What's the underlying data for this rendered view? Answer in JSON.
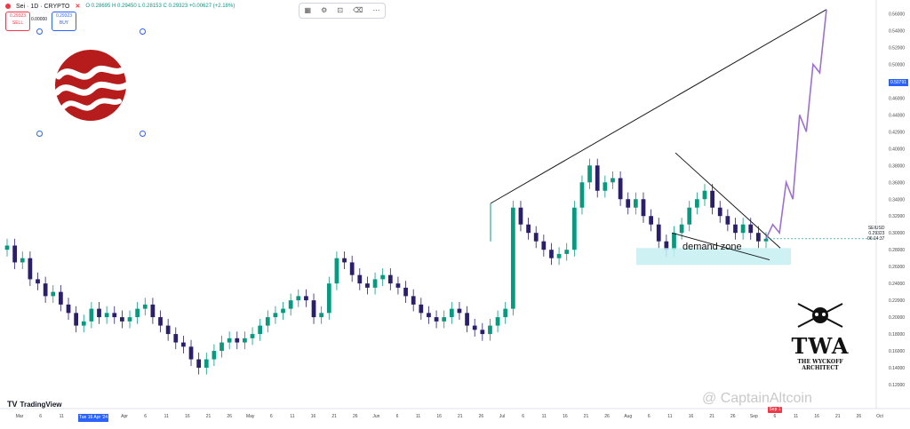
{
  "header": {
    "symbol_line": "Sei · 1D · CRYPTO",
    "ohlc": "O 0.28695  H 0.29450  L 0.28153  C 0.29323  +0.00627 (+2.18%)",
    "sell_price": "0.29323",
    "sell_label": "SELL",
    "buy_price": "0.29323",
    "buy_label": "BUY",
    "spread": "0.00000"
  },
  "toolbar": {
    "icons": [
      "template-icon",
      "settings-icon",
      "lock-icon",
      "trash-icon",
      "more-icon"
    ],
    "glyphs": [
      "▦",
      "⚙",
      "🔒",
      "🗑",
      "⋯"
    ]
  },
  "right_axis": {
    "current_price_badge": "0.50791",
    "symbol_label": "SEIUSD",
    "last_price": "0.29323",
    "countdown": "06:14:37"
  },
  "branding": {
    "tradingview": "TradingView",
    "twa_big": "TWA",
    "twa_line1": "THE WYCKOFF",
    "twa_line2": "ARCHITECT",
    "watermark": "@ CaptainAltcoin"
  },
  "annotations": {
    "demand_zone": "demand zone",
    "red_badge": "Sep 1"
  },
  "date_badge": "Tue 16 Apr '24",
  "colors": {
    "up": "#089981",
    "down": "#2a1f6b",
    "zone": "#c6eef2",
    "projection": "#9b6fd3",
    "trendline": "#1a1a1a",
    "logo_red": "#b71c1c"
  },
  "chart_data": {
    "type": "candlestick",
    "title": "Sei · 1D · CRYPTO",
    "xlabel": "",
    "ylabel": "",
    "ylim": [
      0.1,
      0.57
    ],
    "y_ticks": [
      0.12,
      0.14,
      0.16,
      0.18,
      0.2,
      0.22,
      0.24,
      0.26,
      0.28,
      0.3,
      0.32,
      0.34,
      0.36,
      0.38,
      0.4,
      0.42,
      0.44,
      0.46,
      0.48,
      0.5,
      0.52,
      0.54,
      0.56
    ],
    "x_ticks": [
      "Mar",
      "6",
      "11",
      "Tue 16 Apr '24",
      "26",
      "Apr",
      "6",
      "11",
      "16",
      "21",
      "26",
      "May",
      "6",
      "11",
      "16",
      "21",
      "26",
      "Jun",
      "6",
      "11",
      "16",
      "21",
      "26",
      "Jul",
      "6",
      "11",
      "16",
      "21",
      "26",
      "Aug",
      "6",
      "11",
      "16",
      "21",
      "26",
      "Sep",
      "6",
      "11",
      "16",
      "21",
      "26",
      "Oct"
    ],
    "close_series": [
      0.285,
      0.265,
      0.27,
      0.245,
      0.24,
      0.225,
      0.23,
      0.215,
      0.205,
      0.19,
      0.195,
      0.21,
      0.2,
      0.205,
      0.2,
      0.195,
      0.2,
      0.21,
      0.215,
      0.2,
      0.19,
      0.18,
      0.17,
      0.165,
      0.15,
      0.14,
      0.15,
      0.16,
      0.17,
      0.175,
      0.17,
      0.175,
      0.18,
      0.19,
      0.2,
      0.205,
      0.21,
      0.22,
      0.225,
      0.22,
      0.2,
      0.205,
      0.24,
      0.27,
      0.265,
      0.25,
      0.24,
      0.235,
      0.245,
      0.25,
      0.24,
      0.235,
      0.225,
      0.215,
      0.205,
      0.2,
      0.195,
      0.2,
      0.21,
      0.205,
      0.19,
      0.185,
      0.18,
      0.19,
      0.2,
      0.21,
      0.33,
      0.31,
      0.3,
      0.29,
      0.28,
      0.27,
      0.275,
      0.28,
      0.33,
      0.36,
      0.38,
      0.35,
      0.36,
      0.365,
      0.34,
      0.33,
      0.34,
      0.32,
      0.31,
      0.29,
      0.28,
      0.3,
      0.31,
      0.33,
      0.34,
      0.35,
      0.33,
      0.32,
      0.31,
      0.3,
      0.31,
      0.3,
      0.29,
      0.293
    ],
    "projection": [
      0.293,
      0.31,
      0.3,
      0.36,
      0.34,
      0.44,
      0.42,
      0.5,
      0.49,
      0.565
    ],
    "demand_zone": {
      "low": 0.262,
      "high": 0.282
    },
    "resistance_line": {
      "from": 0.335,
      "to": 0.565
    },
    "wedge_upper": {
      "from": 0.395,
      "to": 0.282
    },
    "wedge_lower": {
      "from": 0.3,
      "to": 0.268
    }
  }
}
